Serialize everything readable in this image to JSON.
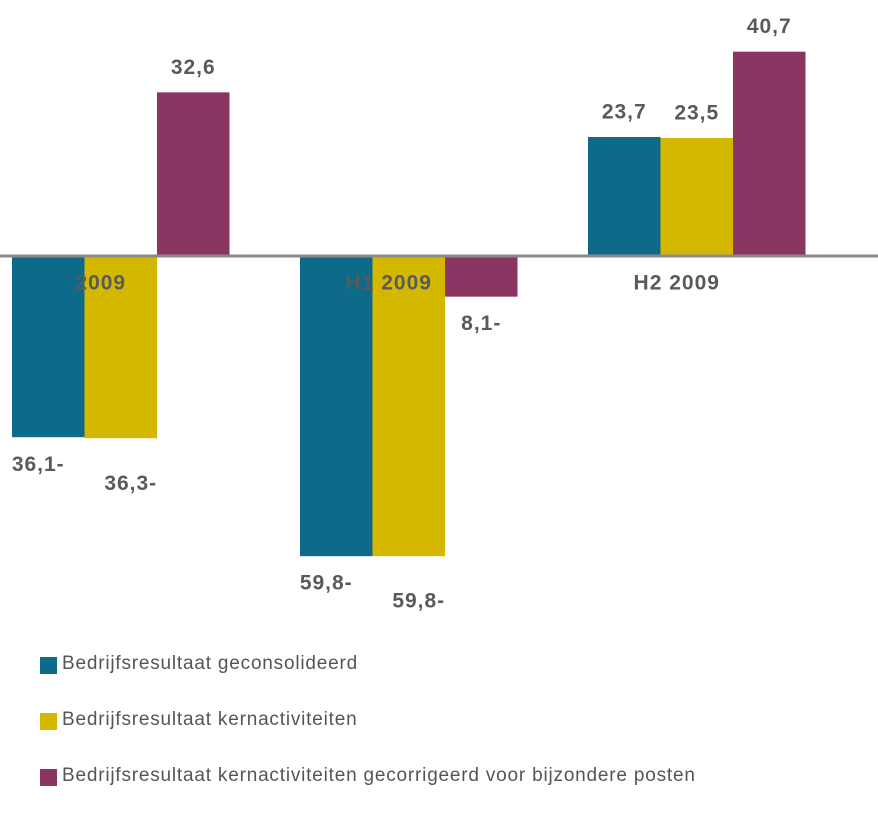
{
  "chart_data": {
    "type": "bar",
    "categories": [
      "2009",
      "H1 2009",
      "H2 2009"
    ],
    "series": [
      {
        "name": "Bedrijfsresultaat geconsolideerd",
        "color": "#0e6a8a",
        "values": [
          -36.1,
          -59.8,
          23.7
        ],
        "value_labels": [
          "36,1-",
          "59,8-",
          "23,7"
        ]
      },
      {
        "name": "Bedrijfsresultaat kernactiviteiten",
        "color": "#d4b800",
        "values": [
          -36.3,
          -59.8,
          23.5
        ],
        "value_labels": [
          "36,3-",
          "59,8-",
          "23,5"
        ]
      },
      {
        "name": "Bedrijfsresultaat kernactiviteiten gecorrigeerd voor bijzondere posten",
        "color": "#8b3562",
        "values": [
          32.6,
          -8.1,
          40.7
        ],
        "value_labels": [
          "32,6",
          "8,1-",
          "40,7"
        ]
      }
    ]
  }
}
